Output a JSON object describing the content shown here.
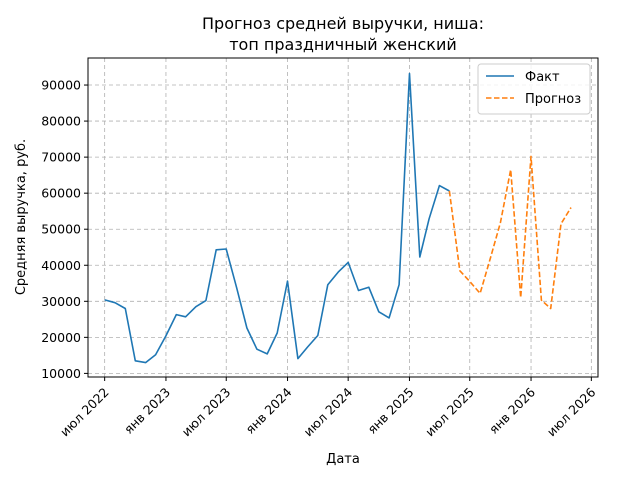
{
  "chart_data": {
    "type": "line",
    "title": [
      "Прогноз средней выручки, ниша:",
      "топ праздничный женский"
    ],
    "xlabel": "Дата",
    "ylabel": "Средняя выручка, руб.",
    "x_ticks": [
      "2022-07-01",
      "2023-01-01",
      "2023-07-01",
      "2024-01-01",
      "2024-07-01",
      "2025-01-01",
      "2025-07-01",
      "2026-01-01",
      "2026-07-01"
    ],
    "x_tick_labels": [
      "июл 2022",
      "янв 2023",
      "июл 2023",
      "янв 2024",
      "июл 2024",
      "янв 2025",
      "июл 2025",
      "янв 2026",
      "июл 2026"
    ],
    "y_ticks": [
      10000,
      20000,
      30000,
      40000,
      50000,
      60000,
      70000,
      80000,
      90000
    ],
    "y_tick_labels": [
      "10000",
      "20000",
      "30000",
      "40000",
      "50000",
      "60000",
      "70000",
      "80000",
      "90000"
    ],
    "xlim": [
      "2022-05-12",
      "2026-07-21"
    ],
    "ylim": [
      9000,
      97500
    ],
    "grid": true,
    "legend_position": "top-right",
    "series": [
      {
        "name": "Факт",
        "color": "#1f77b4",
        "style": "solid",
        "x": [
          "2022-07-01",
          "2022-08-01",
          "2022-09-01",
          "2022-10-01",
          "2022-11-01",
          "2022-12-01",
          "2023-01-01",
          "2023-02-01",
          "2023-03-01",
          "2023-04-01",
          "2023-05-01",
          "2023-06-01",
          "2023-07-01",
          "2023-08-01",
          "2023-09-01",
          "2023-10-01",
          "2023-11-01",
          "2023-12-01",
          "2024-01-01",
          "2024-02-01",
          "2024-03-01",
          "2024-04-01",
          "2024-05-01",
          "2024-06-01",
          "2024-07-01",
          "2024-08-01",
          "2024-09-01",
          "2024-10-01",
          "2024-11-01",
          "2024-12-01",
          "2025-01-01",
          "2025-02-01",
          "2025-03-01",
          "2025-04-01",
          "2025-05-01"
        ],
        "y": [
          30400,
          29600,
          28000,
          13500,
          13000,
          15200,
          20400,
          26300,
          25700,
          28500,
          30200,
          44300,
          44500,
          33800,
          22600,
          16700,
          15400,
          21200,
          35600,
          14100,
          17300,
          20500,
          34600,
          38100,
          40800,
          33000,
          33900,
          27100,
          25400,
          34600,
          93200,
          42300,
          52900,
          62100,
          60600
        ]
      },
      {
        "name": "Прогноз",
        "color": "#ff7f0e",
        "style": "dashed",
        "x": [
          "2025-05-01",
          "2025-06-01",
          "2025-07-01",
          "2025-08-01",
          "2025-09-01",
          "2025-10-01",
          "2025-11-01",
          "2025-12-01",
          "2026-01-01",
          "2026-02-01",
          "2026-03-01",
          "2026-04-01",
          "2026-05-01"
        ],
        "y": [
          60600,
          38500,
          35500,
          32200,
          42000,
          51800,
          66500,
          31000,
          70200,
          30300,
          28000,
          51500,
          56000
        ]
      }
    ]
  }
}
